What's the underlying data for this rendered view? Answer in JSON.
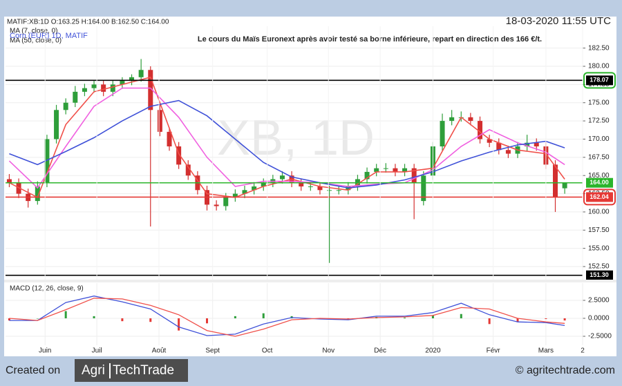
{
  "header": {
    "ticker": "MATIF:XB:1D O:163.25 H:164.00 B:162.50 C:164.00",
    "timestamp": "18-03-2020 11:55 UTC"
  },
  "footer": {
    "created": "Created on",
    "logo_left": "Agri",
    "logo_right": "TechTrade",
    "site": "© agritechtrade.com"
  },
  "chart_data": [
    {
      "type": "candlestick",
      "title": "Le cours du Maïs Euronext après avoir testé sa borne inférieure, repart en direction des 166 €/t.",
      "legend_title": "Corn (EUR) 1D, MATIF",
      "watermark": "XB, 1D",
      "up_color": "#2e9e3a",
      "down_color": "#d32f2f",
      "grid": true,
      "xlim": [
        -0.4,
        60.9
      ],
      "ylim": [
        150.7,
        185.5
      ],
      "yticks": [
        {
          "value": 152.5,
          "label": "152.50"
        },
        {
          "value": 155,
          "label": "155.00"
        },
        {
          "value": 157.5,
          "label": "157.50"
        },
        {
          "value": 160,
          "label": "160.00"
        },
        {
          "value": 162.5,
          "label": "162.50"
        },
        {
          "value": 165,
          "label": "165.00"
        },
        {
          "value": 167.5,
          "label": "167.50"
        },
        {
          "value": 170,
          "label": "170.00"
        },
        {
          "value": 172.5,
          "label": "172.50"
        },
        {
          "value": 175,
          "label": "175.00"
        },
        {
          "value": 177.5,
          "label": "177.50"
        },
        {
          "value": 180,
          "label": "180.00"
        },
        {
          "value": 182.5,
          "label": "182.50"
        }
      ],
      "open": [
        164.5,
        164,
        162.5,
        161.5,
        164,
        170,
        174,
        175,
        176.5,
        177,
        177.5,
        176.5,
        177.5,
        178,
        178.5,
        179.5,
        174,
        171,
        169,
        166.5,
        165,
        163,
        161,
        160.8,
        162,
        162.5,
        163,
        163.5,
        164,
        164.5,
        165,
        164,
        163.5,
        163.5,
        163,
        163,
        163,
        163.5,
        164.5,
        165.5,
        166,
        166,
        165.5,
        166,
        161.5,
        165,
        169,
        172.5,
        173,
        173,
        172.5,
        170,
        169.5,
        168.5,
        168,
        169,
        169.5,
        169,
        166.5,
        163.25
      ],
      "high": [
        165.2,
        164.6,
        163.2,
        164.2,
        170.6,
        174.7,
        175.6,
        177.3,
        177.6,
        178,
        178,
        178,
        178.5,
        178.9,
        181,
        180,
        174.7,
        171.6,
        169.6,
        167.1,
        165.6,
        163.6,
        161.6,
        162.6,
        163.1,
        163.6,
        164.1,
        164.6,
        165.1,
        165.6,
        165.6,
        164.6,
        164.1,
        164.1,
        163.6,
        163.6,
        164.1,
        165.1,
        166.1,
        166.6,
        166.7,
        166.6,
        166.6,
        166.6,
        165.6,
        169.6,
        173.5,
        174,
        173.8,
        173.6,
        173.1,
        170.6,
        170.1,
        169.1,
        169.6,
        170.6,
        170.1,
        169.6,
        167.1,
        164
      ],
      "low": [
        163.4,
        161.9,
        160.6,
        161,
        163.4,
        169.4,
        173.4,
        174.4,
        175.9,
        176.4,
        175.9,
        175.9,
        176.9,
        177.4,
        177.9,
        158,
        170.4,
        168.4,
        165.9,
        164.4,
        162.4,
        160.2,
        160.2,
        160.2,
        161.4,
        161.9,
        162.4,
        162.9,
        163.4,
        163.9,
        163.4,
        162.9,
        162.9,
        162.4,
        153,
        162.4,
        162.4,
        162.9,
        163.9,
        164.9,
        165.4,
        164.9,
        164.9,
        159,
        160.9,
        164.4,
        168.4,
        171.9,
        172.4,
        171.9,
        169.4,
        168.9,
        167.9,
        167.4,
        167.4,
        168.4,
        168.4,
        165.9,
        160,
        162.5
      ],
      "close": [
        164,
        162.5,
        161.5,
        163.5,
        170,
        174,
        175,
        176.5,
        177,
        177.5,
        176.5,
        177.5,
        178,
        178.5,
        179.5,
        174,
        171,
        169,
        166.5,
        165,
        163,
        161,
        160.8,
        162,
        162.5,
        163,
        163.5,
        164,
        164.5,
        165,
        164,
        163.5,
        163.5,
        163,
        163,
        163,
        163.5,
        164.5,
        165.5,
        166,
        166,
        165.5,
        166,
        164,
        165,
        169,
        172.5,
        173,
        173,
        172.5,
        170,
        169.5,
        168.5,
        168,
        169,
        169.5,
        169,
        166.5,
        162,
        164
      ],
      "series": [
        {
          "name": "MA (7, close, 0)",
          "color": "#f0504a",
          "x": [
            0,
            3,
            6,
            9,
            12,
            15,
            18,
            21,
            24,
            27,
            30,
            33,
            36,
            39,
            42,
            45,
            48,
            51,
            54,
            57,
            59
          ],
          "values": [
            164,
            162,
            172,
            176.5,
            177.5,
            178.5,
            168,
            162.5,
            162,
            163.5,
            164.5,
            163.5,
            163,
            165.5,
            165.5,
            166,
            173,
            170,
            168.5,
            168,
            164.5
          ]
        },
        {
          "color": "#f060e0",
          "x": [
            0,
            3,
            6,
            9,
            12,
            15,
            18,
            21,
            24,
            27,
            30,
            33,
            36,
            39,
            42,
            45,
            48,
            51,
            54,
            57,
            59
          ],
          "values": [
            167,
            163.3,
            169,
            174.5,
            177,
            177,
            173,
            167.5,
            163.5,
            164.2,
            164.2,
            164,
            163.5,
            163.8,
            164,
            165.8,
            169,
            171.3,
            169.5,
            168.2,
            166.5
          ]
        },
        {
          "name": "MA (50, close, 0)",
          "color": "#3f51d8",
          "x": [
            0,
            3,
            6,
            9,
            12,
            15,
            18,
            21,
            24,
            27,
            30,
            33,
            36,
            39,
            42,
            45,
            48,
            51,
            54,
            57,
            59
          ],
          "values": [
            168,
            166.5,
            168.3,
            170.2,
            172.5,
            174.5,
            175.3,
            173.2,
            170,
            166.8,
            164.8,
            164,
            163.3,
            163.7,
            164.4,
            165.5,
            167,
            168.2,
            169.2,
            169.7,
            168.8
          ]
        }
      ],
      "levels": [
        {
          "value": 178.07,
          "color": "#000000",
          "outline": "#2bb52b"
        },
        {
          "value": 164,
          "label": "164.00",
          "color": "#2bb52b"
        },
        {
          "value": 162.04,
          "color": "#e53935",
          "outline": "#e53935"
        },
        {
          "value": 151.3,
          "label": "151.30",
          "color": "#000000"
        }
      ]
    },
    {
      "type": "macd",
      "title": "MACD (12, 26, close, 9)",
      "grid": true,
      "xlim": [
        -0.4,
        60.9
      ],
      "ylim": [
        -3.75,
        4.9
      ],
      "yticks": [
        {
          "value": -2.5,
          "label": "-2.5000"
        },
        {
          "value": 0,
          "label": "0.0000"
        },
        {
          "value": 2.5,
          "label": "2.5000"
        }
      ],
      "xticks": [
        {
          "value": 3.8,
          "label": "Juin"
        },
        {
          "value": 9.3,
          "label": "Juil"
        },
        {
          "value": 15.9,
          "label": "Août"
        },
        {
          "value": 21.6,
          "label": "Sept"
        },
        {
          "value": 27.4,
          "label": "Oct"
        },
        {
          "value": 33.9,
          "label": "Nov"
        },
        {
          "value": 39.4,
          "label": "Déc"
        },
        {
          "value": 45,
          "label": "2020"
        },
        {
          "value": 51.4,
          "label": "Févr"
        },
        {
          "value": 57,
          "label": "Mars"
        },
        {
          "value": 60.9,
          "label": "2"
        }
      ],
      "series": [
        {
          "color": "#3f51d8",
          "x": [
            0,
            3,
            6,
            9,
            12,
            15,
            18,
            21,
            24,
            27,
            30,
            33,
            36,
            39,
            42,
            45,
            48,
            51,
            54,
            57,
            59
          ],
          "values": [
            -0.3,
            -0.3,
            2.2,
            3.1,
            2.3,
            1.3,
            -1.2,
            -2.4,
            -2.2,
            -0.8,
            0.1,
            -0.1,
            -0.2,
            0.3,
            0.3,
            0.8,
            2.1,
            0.5,
            -0.5,
            -0.6,
            -1
          ]
        },
        {
          "color": "#f0504a",
          "x": [
            0,
            3,
            6,
            9,
            12,
            15,
            18,
            21,
            24,
            27,
            30,
            33,
            36,
            39,
            42,
            45,
            48,
            51,
            54,
            57,
            59
          ],
          "values": [
            0,
            -0.3,
            1.2,
            2.8,
            2.7,
            1.8,
            0.5,
            -1.7,
            -2.5,
            -1.5,
            -0.2,
            0,
            -0.1,
            0.1,
            0.2,
            0.4,
            1.5,
            1.3,
            0,
            -0.5,
            -0.7
          ]
        }
      ],
      "histogram": {
        "up_color": "#2e9e3a",
        "down_color": "#e53935",
        "x": [
          0,
          3,
          6,
          9,
          12,
          15,
          18,
          21,
          24,
          27,
          30,
          33,
          36,
          39,
          42,
          45,
          48,
          51,
          54,
          57,
          59
        ],
        "values": [
          -0.3,
          0,
          1,
          0.3,
          -0.4,
          -0.5,
          -1.7,
          -0.7,
          0.3,
          0.7,
          0.3,
          -0.1,
          -0.1,
          0.2,
          0.1,
          0.4,
          0.6,
          -0.8,
          -0.5,
          -0.1,
          -0.3
        ]
      }
    }
  ]
}
